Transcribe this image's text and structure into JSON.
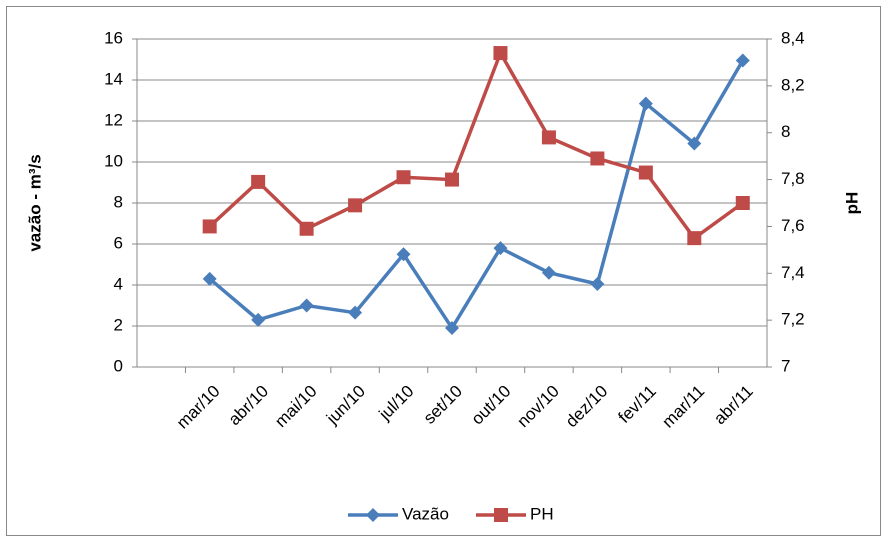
{
  "chart_data": {
    "type": "line",
    "categories": [
      null,
      "mar/10",
      "abr/10",
      "mai/10",
      "jun/10",
      "jul/10",
      "set/10",
      "out/10",
      "nov/10",
      "dez/10",
      "fev/11",
      "mar/11",
      "abr/11"
    ],
    "y_label": "vazão - m³/s",
    "y2_label": "pH",
    "series": [
      {
        "name": "Vazão",
        "color": "#4a7ebb",
        "marker": "diamond",
        "values": [
          null,
          4.3,
          2.3,
          3.0,
          2.65,
          5.5,
          1.9,
          5.8,
          4.6,
          4.05,
          12.85,
          10.9,
          14.95
        ]
      },
      {
        "name": "PH",
        "color": "#be4b48",
        "marker": "square",
        "axis": "y2",
        "values": [
          null,
          7.6,
          7.79,
          7.59,
          7.69,
          7.81,
          7.8,
          8.34,
          7.98,
          7.89,
          7.83,
          7.55,
          7.7
        ]
      }
    ],
    "ylim": [
      0,
      16
    ],
    "yticks": [
      0,
      2,
      4,
      6,
      8,
      10,
      12,
      14,
      16
    ],
    "y2lim": [
      7,
      8.4
    ],
    "y2ticks": [
      7,
      {
        "value": 7.2,
        "label": "7,2"
      },
      {
        "value": 7.4,
        "label": "7,4"
      },
      {
        "value": 7.6,
        "label": "7,6"
      },
      {
        "value": 7.8,
        "label": "7,8"
      },
      8,
      {
        "value": 8.2,
        "label": "8,2"
      },
      {
        "value": 8.4,
        "label": "8,4"
      }
    ],
    "grid": true,
    "legend": "bottom"
  }
}
